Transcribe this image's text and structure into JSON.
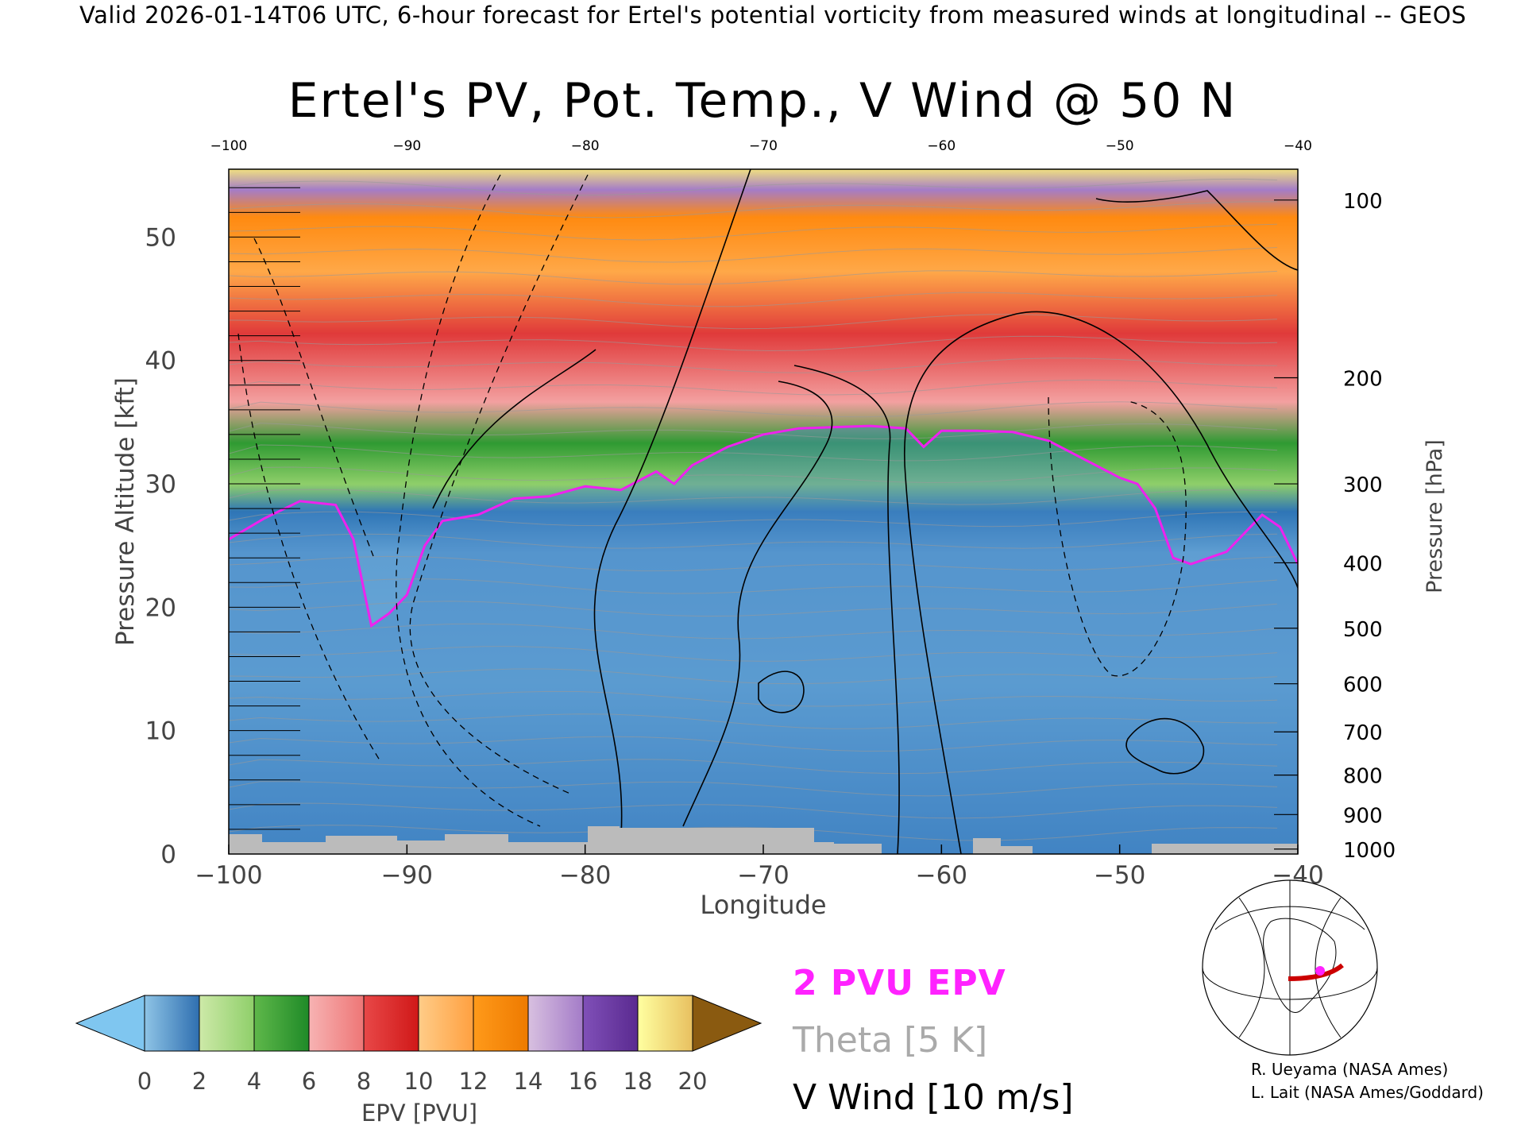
{
  "header": "Valid 2026-01-14T06 UTC, 6-hour forecast for Ertel's potential vorticity from measured winds at longitudinal -- GEOS",
  "chart_data": {
    "type": "heatmap",
    "title": "Ertel's PV, Pot. Temp., V Wind @ 50 N",
    "xlabel": "Longitude",
    "ylabel_left": "Pressure Altitude [kft]",
    "ylabel_right": "Pressure [hPa]",
    "xlim": [
      -100,
      -40
    ],
    "ylim": [
      0,
      55.5
    ],
    "x_ticks": [
      -100,
      -90,
      -80,
      -70,
      -60,
      -50,
      -40
    ],
    "y_ticks_left": [
      0,
      10,
      20,
      30,
      40,
      50
    ],
    "y_ticks_right": [
      {
        "hpa": 100,
        "kft": 53.0
      },
      {
        "hpa": 200,
        "kft": 38.6
      },
      {
        "hpa": 300,
        "kft": 30.0
      },
      {
        "hpa": 400,
        "kft": 23.6
      },
      {
        "hpa": 500,
        "kft": 18.3
      },
      {
        "hpa": 600,
        "kft": 13.8
      },
      {
        "hpa": 700,
        "kft": 9.9
      },
      {
        "hpa": 800,
        "kft": 6.4
      },
      {
        "hpa": 900,
        "kft": 3.2
      },
      {
        "hpa": 1000,
        "kft": 0.4
      }
    ],
    "tropopause_2pvu": {
      "lon": [
        -100,
        -98,
        -96,
        -94,
        -93,
        -92,
        -91,
        -90,
        -89,
        -88,
        -86,
        -84,
        -82,
        -80,
        -78,
        -76,
        -75,
        -74,
        -72,
        -70,
        -68,
        -66,
        -64,
        -62,
        -61,
        -60,
        -58,
        -56,
        -54,
        -52,
        -50,
        -49,
        -48,
        -47,
        -46,
        -44,
        -42,
        -41,
        -40
      ],
      "kft": [
        25.5,
        27.2,
        28.6,
        28.3,
        25.5,
        18.5,
        19.5,
        21.0,
        25.0,
        27.0,
        27.5,
        28.8,
        29.0,
        29.8,
        29.5,
        31.0,
        30.0,
        31.5,
        33.0,
        34.0,
        34.5,
        34.6,
        34.7,
        34.5,
        33.0,
        34.3,
        34.3,
        34.2,
        33.5,
        32.0,
        30.5,
        30.0,
        28.0,
        24.0,
        23.5,
        24.5,
        27.5,
        26.5,
        23.5
      ]
    },
    "colorbar": {
      "label": "EPV [PVU]",
      "ticks": [
        0,
        2,
        4,
        6,
        8,
        10,
        12,
        14,
        16,
        18,
        20
      ],
      "segments": [
        {
          "range": [
            0,
            2
          ],
          "from": "#8ec4e6",
          "to": "#2f6fb0"
        },
        {
          "range": [
            2,
            4
          ],
          "from": "#cde9a8",
          "to": "#8fcf6a"
        },
        {
          "range": [
            4,
            6
          ],
          "from": "#5fb84a",
          "to": "#1f8a28"
        },
        {
          "range": [
            6,
            8
          ],
          "from": "#f7b3b3",
          "to": "#ee7676"
        },
        {
          "range": [
            8,
            10
          ],
          "from": "#e84848",
          "to": "#d01818"
        },
        {
          "range": [
            10,
            12
          ],
          "from": "#ffcc88",
          "to": "#ffa040"
        },
        {
          "range": [
            12,
            14
          ],
          "from": "#ff9a1a",
          "to": "#ee7a00"
        },
        {
          "range": [
            14,
            16
          ],
          "from": "#d8c0e0",
          "to": "#a47cc8"
        },
        {
          "range": [
            16,
            18
          ],
          "from": "#8050b8",
          "to": "#5a2a90"
        },
        {
          "range": [
            18,
            20
          ],
          "from": "#ffffa0",
          "to": "#e8c060"
        }
      ],
      "under_color": "#7fc6f0",
      "over_color": "#8a5a10"
    },
    "colors": {
      "tropopause": "#ee22ee",
      "terrain": "#bbbbbb",
      "theta": "#999999",
      "wind": "#000000"
    }
  },
  "legend": {
    "epv": "2 PVU EPV",
    "theta": "Theta [5 K]",
    "v_wind": "V Wind [10 m/s]"
  },
  "credits": {
    "line1": "R. Ueyama (NASA Ames)",
    "line2": "L. Lait (NASA Ames/Goddard)"
  }
}
